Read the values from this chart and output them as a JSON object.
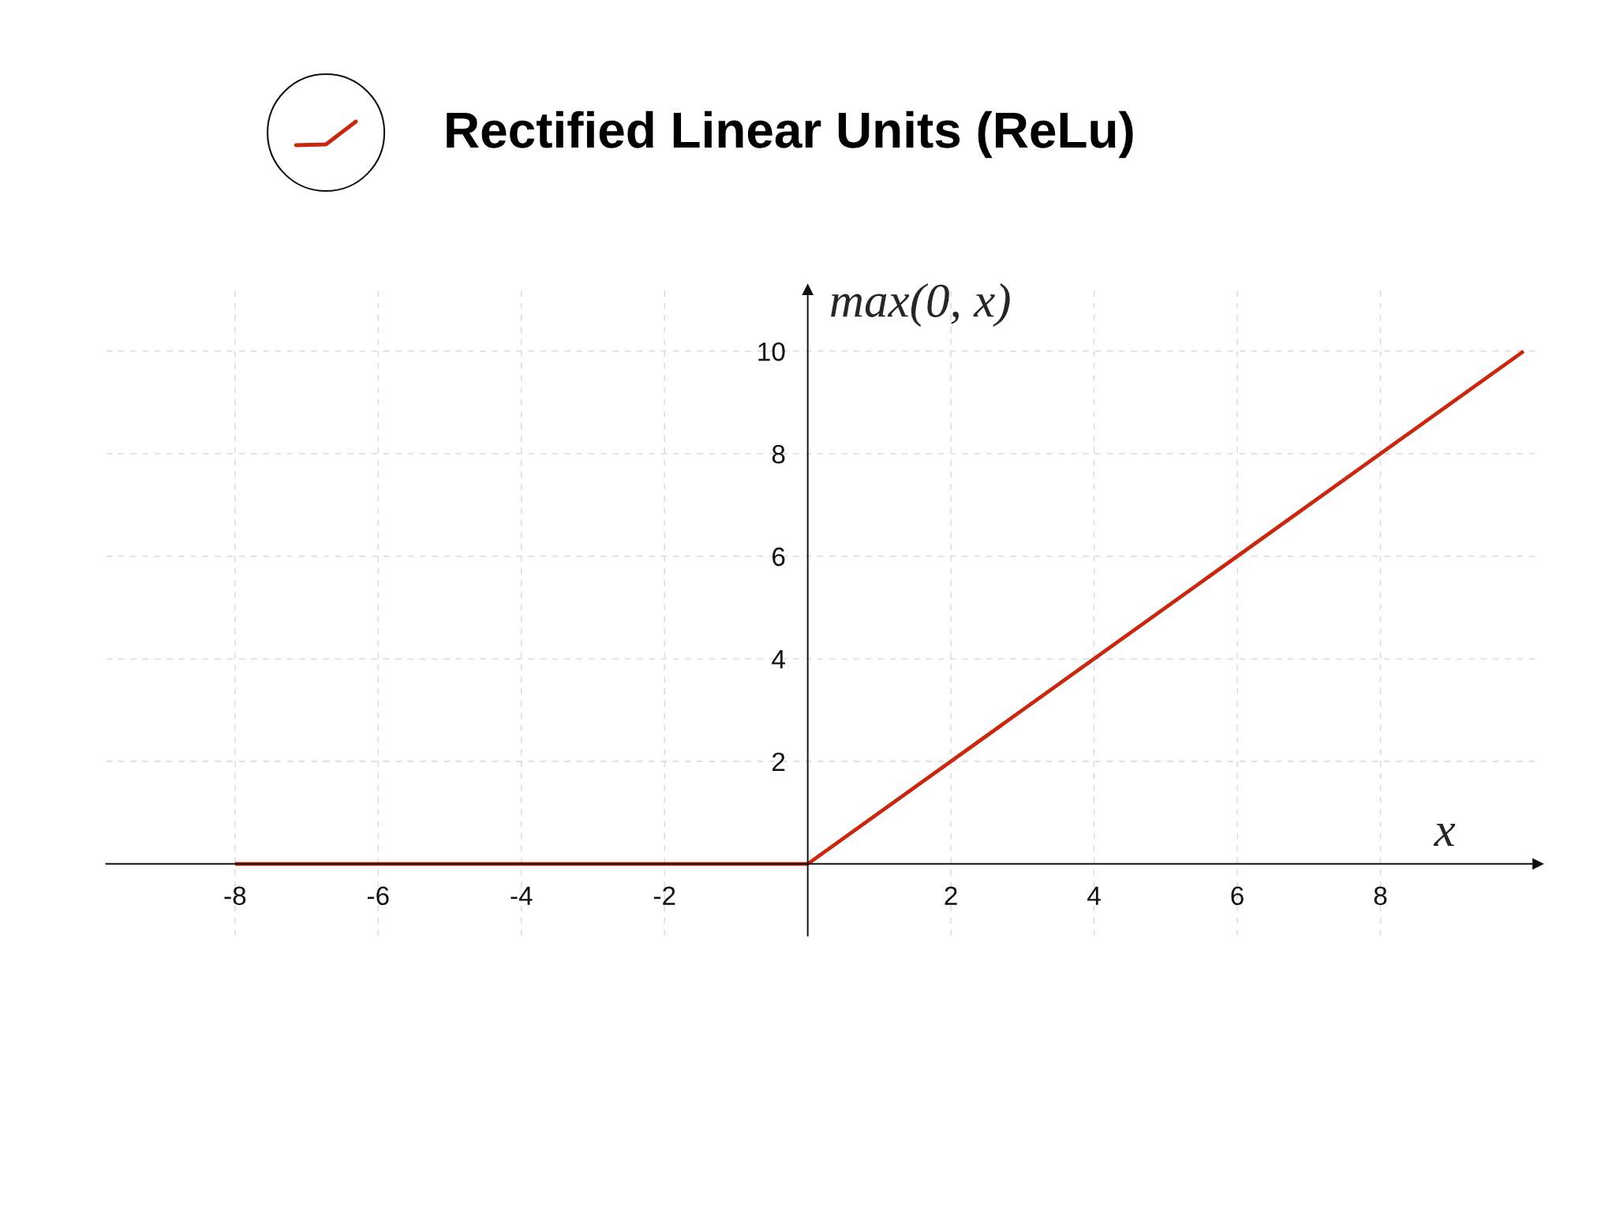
{
  "chart_data": {
    "type": "line",
    "title": "Rectified Linear Units (ReLu)",
    "xlabel": "x",
    "ylabel": "max(0, x)",
    "x": [
      -8,
      0,
      10
    ],
    "series": [
      {
        "color": "#c8280f",
        "values": [
          0,
          0,
          10
        ]
      }
    ],
    "xlim": [
      -9.8,
      10.2
    ],
    "ylim": [
      -1.4,
      11.2
    ],
    "xticks": [
      -8,
      -6,
      -4,
      -2,
      2,
      4,
      6,
      8
    ],
    "yticks": [
      2,
      4,
      6,
      8,
      10
    ],
    "grid": true,
    "line_style": "solid"
  }
}
